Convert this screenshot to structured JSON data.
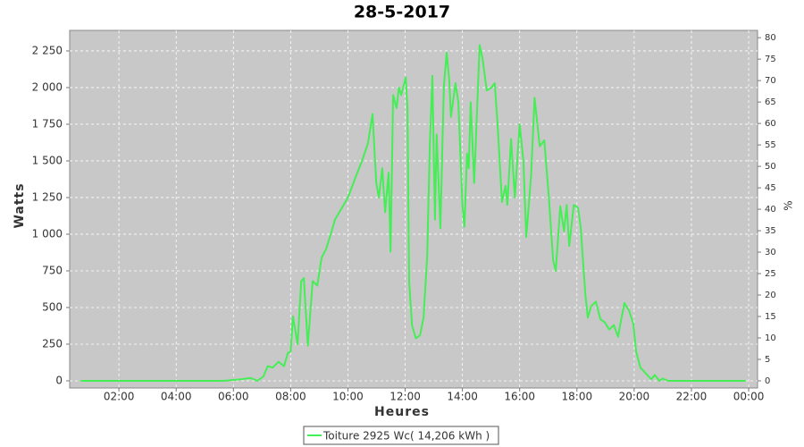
{
  "chart_data": {
    "type": "line",
    "title": "28-5-2017",
    "x_label": "Heures",
    "y_label": "Watts",
    "y2_label": "%",
    "xlim": [
      0.28,
      24.31
    ],
    "ylim": [
      -49,
      2390
    ],
    "y2lim": [
      -1.67,
      81.7
    ],
    "xticks": [
      {
        "value": 2,
        "label": "02:00"
      },
      {
        "value": 4,
        "label": "04:00"
      },
      {
        "value": 6,
        "label": "06:00"
      },
      {
        "value": 8,
        "label": "08:00"
      },
      {
        "value": 10,
        "label": "10:00"
      },
      {
        "value": 12,
        "label": "12:00"
      },
      {
        "value": 14,
        "label": "14:00"
      },
      {
        "value": 16,
        "label": "16:00"
      },
      {
        "value": 18,
        "label": "18:00"
      },
      {
        "value": 20,
        "label": "20:00"
      },
      {
        "value": 22,
        "label": "22:00"
      },
      {
        "value": 24,
        "label": "00:00"
      }
    ],
    "yticks": [
      0,
      250,
      500,
      750,
      {
        "value": 1000,
        "label": "1 000"
      },
      {
        "value": 1250,
        "label": "1 250"
      },
      {
        "value": 1500,
        "label": "1 500"
      },
      {
        "value": 1750,
        "label": "1 750"
      },
      {
        "value": 2000,
        "label": "2 000"
      },
      {
        "value": 2250,
        "label": "2 250"
      }
    ],
    "y2ticks": [
      0,
      5,
      10,
      15,
      20,
      25,
      30,
      35,
      40,
      45,
      50,
      55,
      60,
      65,
      70,
      75,
      80
    ],
    "grid": true,
    "x": [
      0.66,
      5.65,
      6.27,
      6.59,
      6.84,
      7.05,
      7.2,
      7.37,
      7.58,
      7.77,
      7.9,
      8.0,
      8.08,
      8.24,
      8.37,
      8.46,
      8.6,
      8.77,
      8.93,
      9.08,
      9.24,
      9.4,
      9.55,
      9.7,
      10.0,
      10.27,
      10.49,
      10.7,
      10.86,
      10.99,
      11.08,
      11.2,
      11.3,
      11.42,
      11.49,
      11.58,
      11.7,
      11.78,
      11.86,
      12.02,
      12.08,
      12.14,
      12.24,
      12.37,
      12.52,
      12.64,
      12.77,
      12.86,
      12.95,
      13.04,
      13.1,
      13.23,
      13.35,
      13.45,
      13.54,
      13.6,
      13.76,
      13.86,
      14.0,
      14.07,
      14.16,
      14.22,
      14.29,
      14.41,
      14.6,
      14.7,
      14.85,
      15.01,
      15.13,
      15.23,
      15.38,
      15.51,
      15.57,
      15.7,
      15.83,
      16.0,
      16.13,
      16.23,
      16.4,
      16.52,
      16.7,
      16.86,
      17.02,
      17.17,
      17.26,
      17.42,
      17.55,
      17.64,
      17.73,
      17.89,
      18.04,
      18.13,
      18.29,
      18.38,
      18.5,
      18.66,
      18.82,
      18.97,
      19.13,
      19.29,
      19.44,
      19.51,
      19.66,
      19.82,
      19.97,
      20.07,
      20.22,
      20.41,
      20.6,
      20.72,
      20.88,
      21.0,
      21.19,
      23.9
    ],
    "series": [
      {
        "name": "Toiture 2925 Wc( 14,206 kWh )",
        "color": "#44ee55",
        "values": [
          0,
          0,
          10,
          20,
          0,
          30,
          100,
          90,
          130,
          100,
          190,
          200,
          440,
          250,
          680,
          700,
          240,
          680,
          650,
          840,
          900,
          1000,
          1100,
          1150,
          1250,
          1390,
          1500,
          1620,
          1820,
          1350,
          1250,
          1450,
          1150,
          1420,
          880,
          1950,
          1860,
          2000,
          1950,
          2070,
          1860,
          680,
          380,
          290,
          310,
          430,
          850,
          1600,
          2080,
          1100,
          1680,
          1040,
          2000,
          2240,
          2050,
          1800,
          2030,
          1900,
          1200,
          1050,
          1550,
          1450,
          1900,
          1350,
          2290,
          2200,
          1980,
          2000,
          2030,
          1750,
          1220,
          1330,
          1200,
          1650,
          1250,
          1750,
          1500,
          980,
          1400,
          1930,
          1600,
          1640,
          1250,
          820,
          750,
          1190,
          1020,
          1200,
          920,
          1200,
          1180,
          1050,
          600,
          430,
          510,
          540,
          420,
          400,
          350,
          380,
          300,
          380,
          530,
          480,
          390,
          200,
          90,
          50,
          10,
          40,
          0,
          15,
          0,
          0
        ]
      }
    ]
  }
}
